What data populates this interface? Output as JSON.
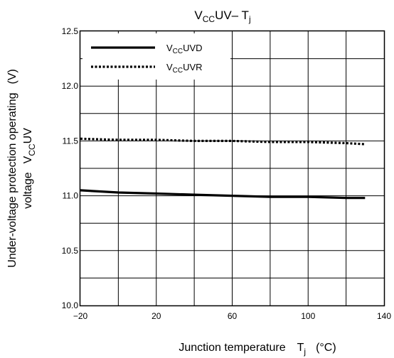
{
  "chart_data": {
    "type": "line",
    "title": "VCCUV– Tj",
    "title_parts": {
      "main": "V",
      "sub_cc": "CC",
      "mid": "UV– T",
      "sub_j": "j"
    },
    "xlabel": "Junction temperature",
    "xlabel_parts": {
      "var": "T",
      "sub": "j",
      "unit": "(°C)"
    },
    "ylabel_line1": "Under-voltage protection operating",
    "ylabel_line2": "voltage",
    "ylabel_parts": {
      "var": "V",
      "sub": "CC",
      "rest": "UV",
      "unit": "(V)"
    },
    "xlim": [
      -20,
      140
    ],
    "ylim": [
      10.0,
      12.5
    ],
    "x_ticks": [
      "−20",
      "20",
      "60",
      "100",
      "140"
    ],
    "x_tick_values": [
      -20,
      20,
      60,
      100,
      140
    ],
    "y_ticks": [
      "10.0",
      "10.5",
      "11.0",
      "11.5",
      "12.0",
      "12.5"
    ],
    "y_tick_values": [
      10.0,
      10.5,
      11.0,
      11.5,
      12.0,
      12.5
    ],
    "grid": true,
    "legend_position": "top-left",
    "series": [
      {
        "name": "VCCUVD",
        "name_parts": {
          "main": "V",
          "sub": "CC",
          "rest": "UVD"
        },
        "style": "solid",
        "color": "#000000",
        "x": [
          -20,
          0,
          20,
          40,
          60,
          80,
          100,
          120,
          130
        ],
        "y": [
          11.05,
          11.03,
          11.02,
          11.01,
          11.0,
          10.99,
          10.99,
          10.98,
          10.98
        ]
      },
      {
        "name": "VCCUVR",
        "name_parts": {
          "main": "V",
          "sub": "CC",
          "rest": "UVR"
        },
        "style": "dotted",
        "color": "#000000",
        "x": [
          -20,
          0,
          20,
          40,
          60,
          80,
          100,
          120,
          130
        ],
        "y": [
          11.52,
          11.51,
          11.51,
          11.5,
          11.5,
          11.49,
          11.49,
          11.48,
          11.47
        ]
      }
    ]
  }
}
